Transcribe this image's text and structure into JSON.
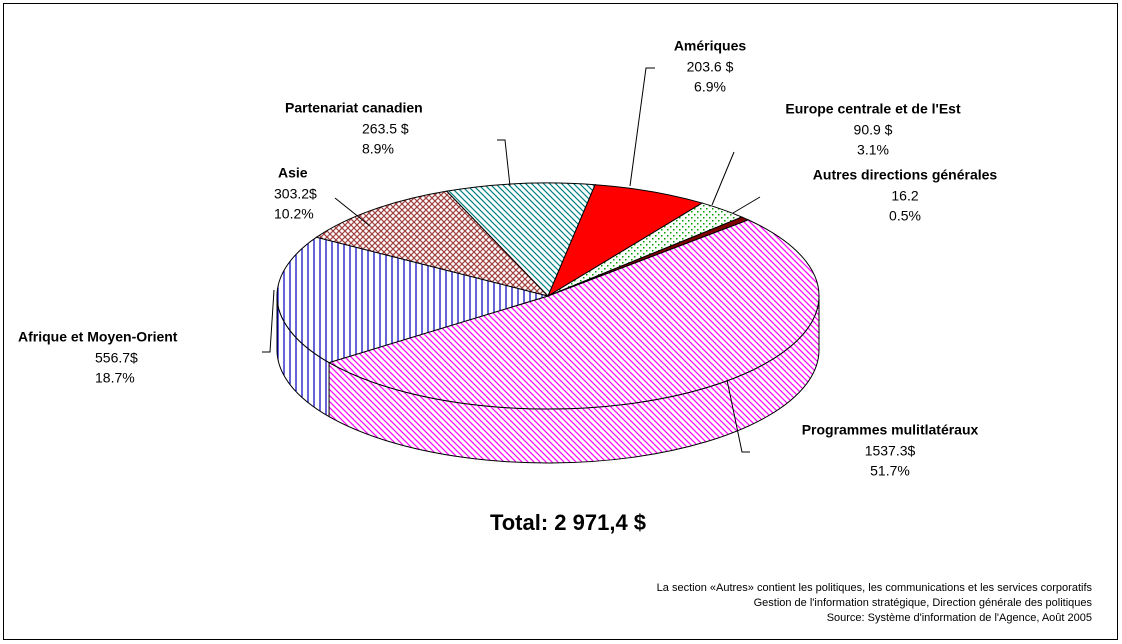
{
  "chart_data": {
    "type": "pie",
    "categories": [
      "Amériques",
      "Europe centrale et de l'Est",
      "Autres directions générales",
      "Programmes mulitlatéraux",
      "Afrique et Moyen-Orient",
      "Asie",
      "Partenariat canadien"
    ],
    "values": [
      203.6,
      90.9,
      16.2,
      1537.3,
      556.7,
      303.2,
      263.5
    ],
    "value_labels": [
      "203.6 $",
      "90.9 $",
      "16.2",
      "1537.3$",
      "556.7$",
      "303.2$",
      "263.5 $"
    ],
    "percents": [
      6.9,
      3.1,
      0.5,
      51.7,
      18.7,
      10.2,
      8.9
    ],
    "percent_labels": [
      "6.9%",
      "3.1%",
      "0.5%",
      "51.7%",
      "18.7%",
      "10.2%",
      "8.9%"
    ],
    "colors": [
      "#ff0000",
      "#00a000",
      "#800000",
      "#ff00ff",
      "#0000c0",
      "#a04040",
      "#008080"
    ],
    "total": "Total: 2 971,4 $",
    "notes": [
      "La section «Autres» contient les politiques, les communications et les services corporatifs",
      "Gestion de l'information stratégique, Direction générale des politiques",
      "Source: Système d'information de l'Agence, Août 2005"
    ]
  }
}
